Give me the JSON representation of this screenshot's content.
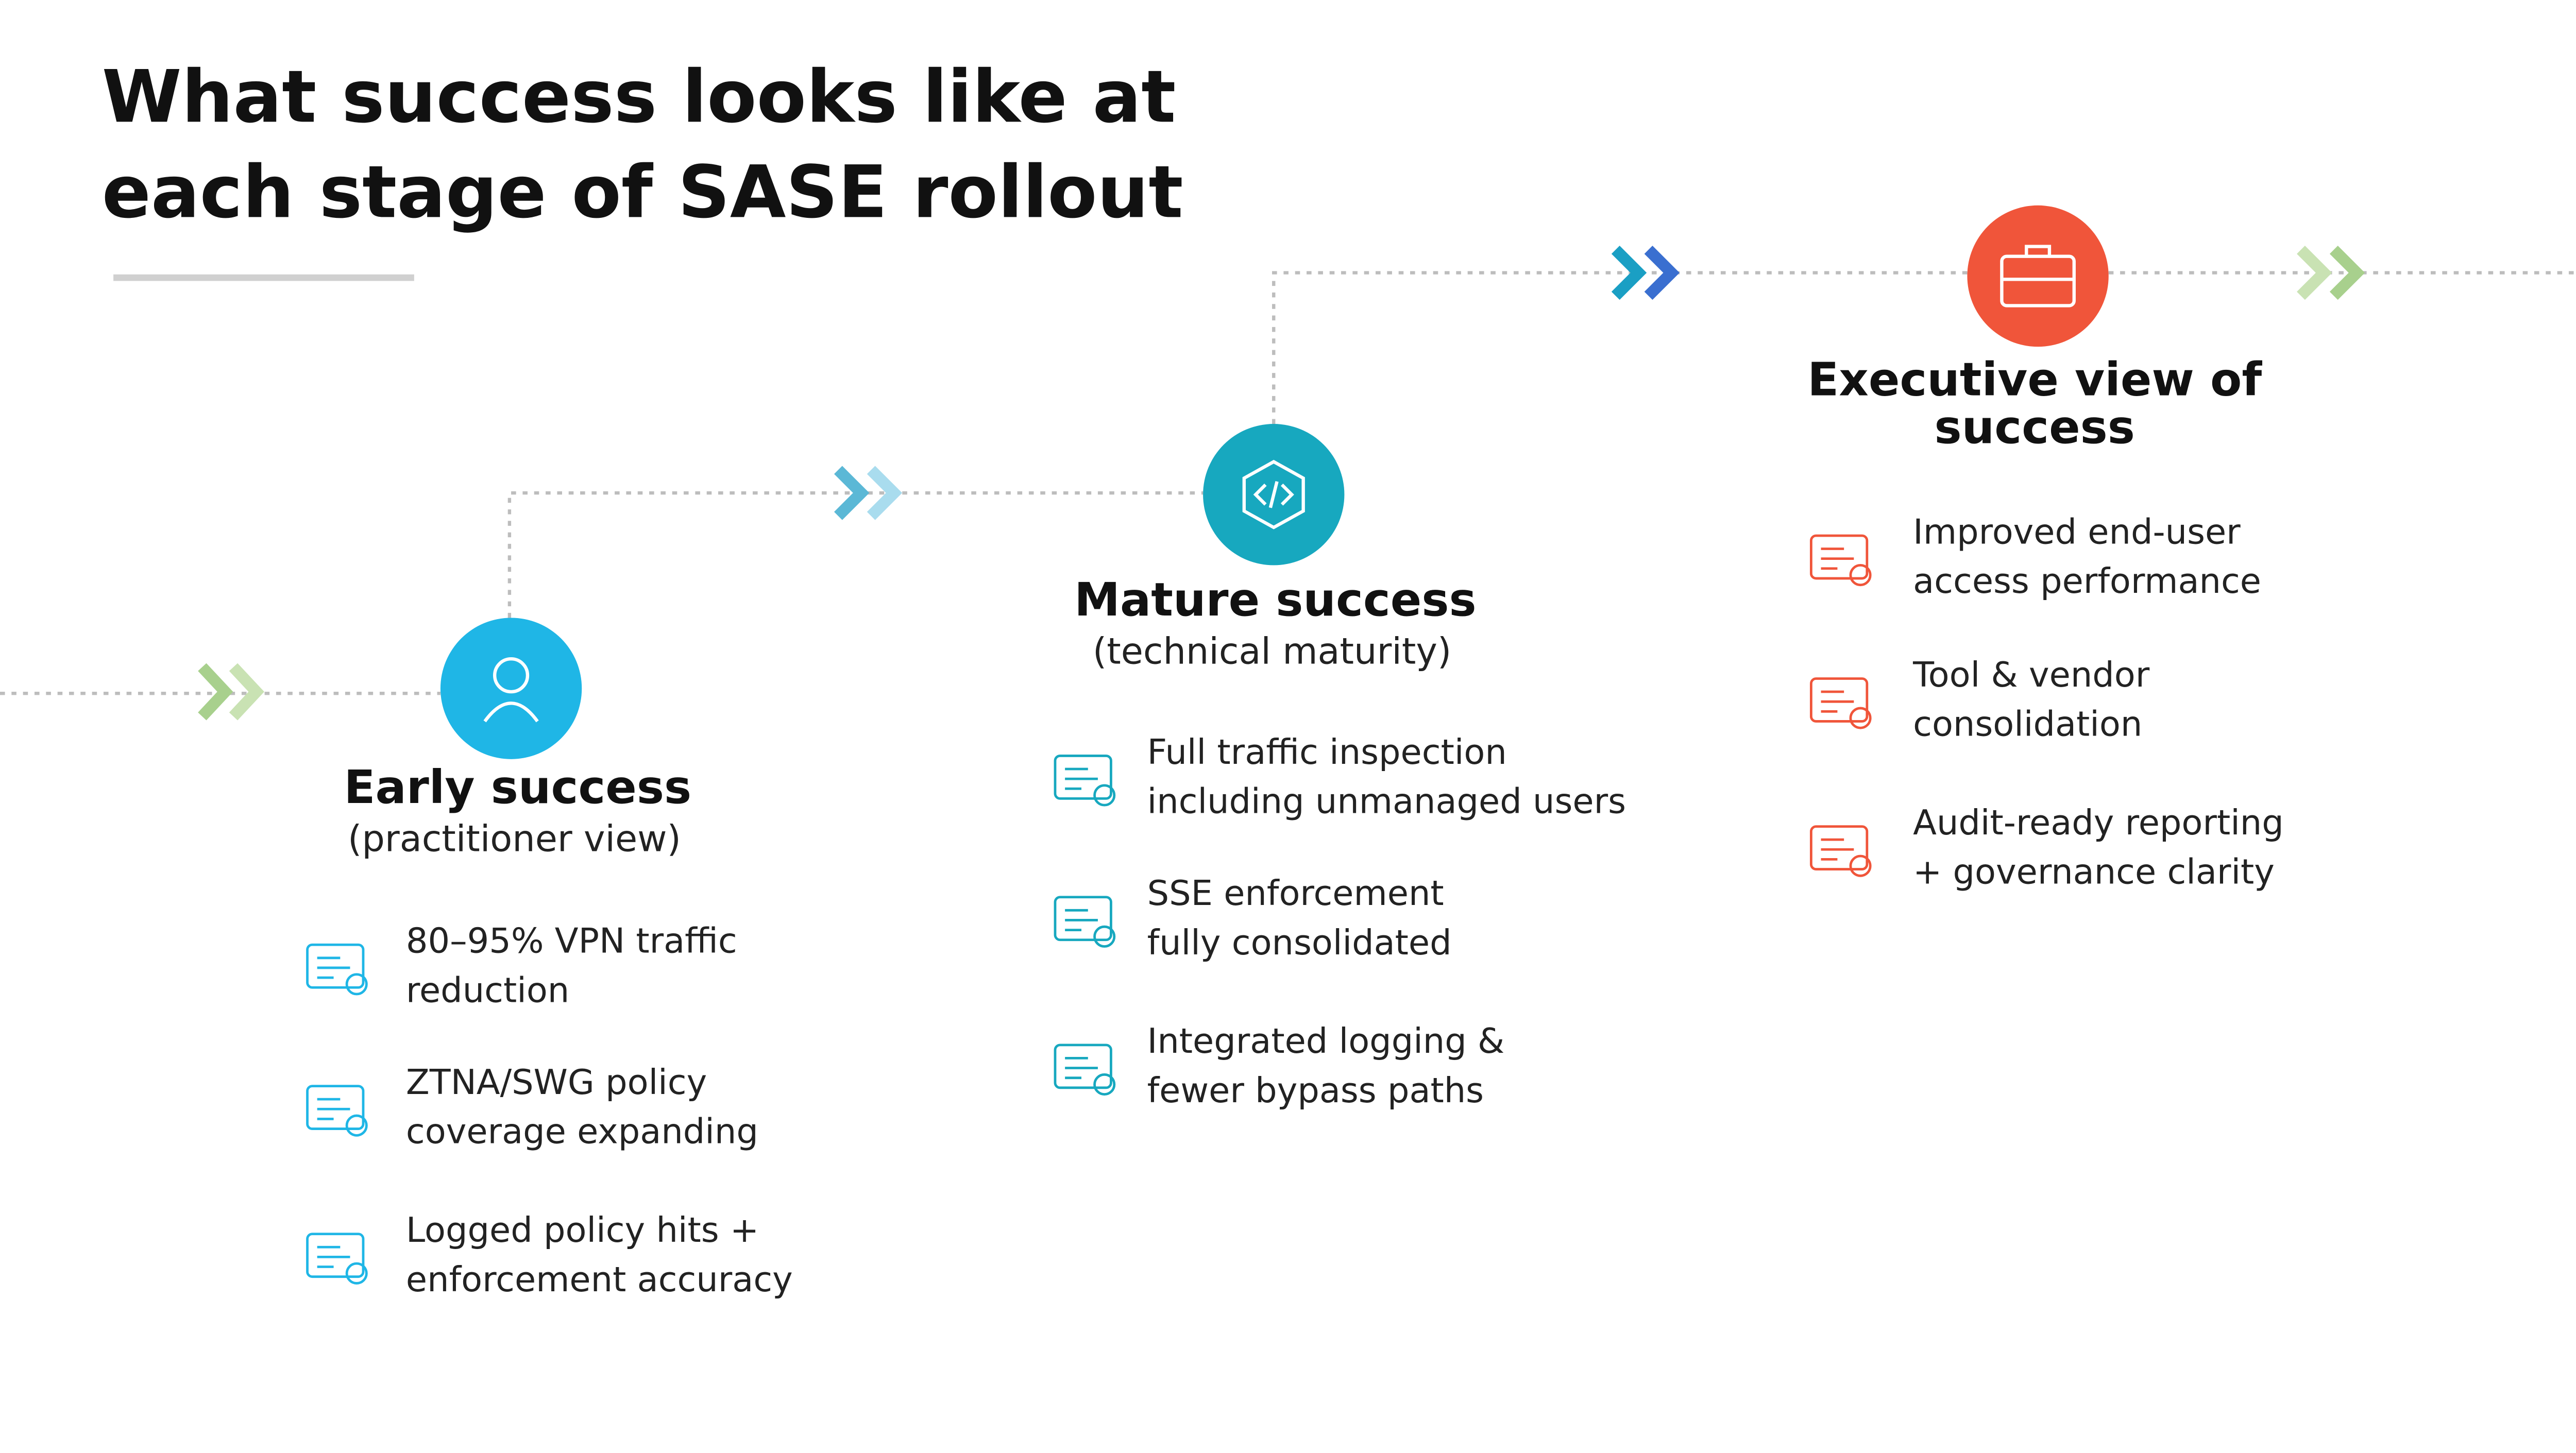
{
  "header": {
    "title": [
      "What success looks like at",
      "each stage of SASE rollout"
    ]
  },
  "stages": [
    {
      "heading": [
        "Early success"
      ],
      "subheading": "(practitioner view)",
      "items": [
        {
          "lines": [
            "80–95% VPN traffic",
            "reduction"
          ]
        },
        {
          "lines": [
            "ZTNA/SWG policy",
            "coverage expanding"
          ]
        },
        {
          "lines": [
            "Logged policy hits +",
            "enforcement accuracy"
          ]
        }
      ]
    },
    {
      "heading": [
        "Mature success"
      ],
      "subheading": "(technical maturity)",
      "items": [
        {
          "lines": [
            "Full traffic inspection",
            "including unmanaged users"
          ]
        },
        {
          "lines": [
            "SSE enforcement",
            "fully consolidated"
          ]
        },
        {
          "lines": [
            "Integrated logging &",
            "fewer bypass paths"
          ]
        }
      ]
    },
    {
      "heading": [
        "Executive view of",
        "success"
      ],
      "items": [
        {
          "lines": [
            "Improved end-user",
            "access performance"
          ]
        },
        {
          "lines": [
            "Tool & vendor",
            "consolidation"
          ]
        },
        {
          "lines": [
            "Audit-ready reporting",
            "+ governance clarity"
          ]
        }
      ]
    }
  ]
}
